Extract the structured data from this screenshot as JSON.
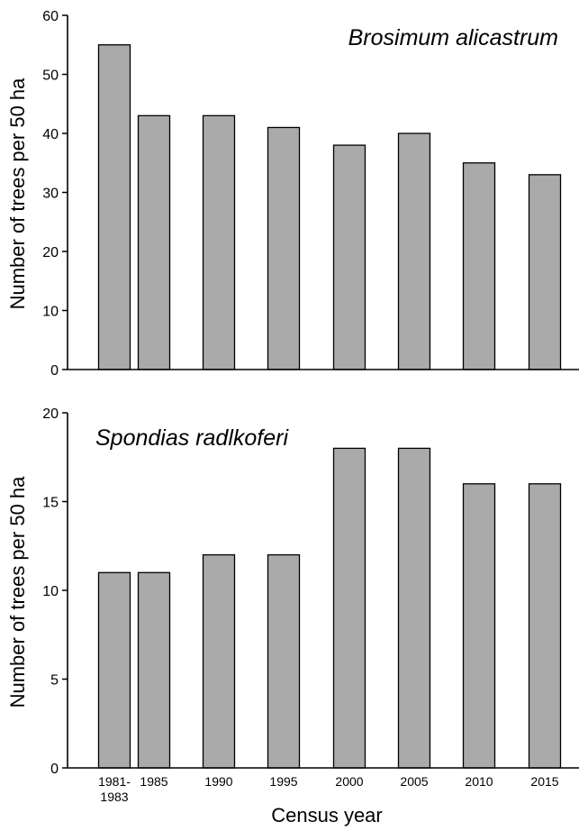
{
  "chart_data": [
    {
      "type": "bar",
      "title": "Brosimum alicastrum",
      "ylabel": "Number of trees per 50 ha",
      "xlabel": "",
      "ylim": [
        0,
        60
      ],
      "yticks": [
        0,
        10,
        20,
        30,
        40,
        50,
        60
      ],
      "categories": [
        "1981",
        "1985",
        "1990",
        "1995",
        "2000",
        "2005",
        "2010",
        "2015"
      ],
      "values": [
        55,
        43,
        43,
        41,
        38,
        40,
        35,
        33
      ],
      "bar_color": "#aaaaaa",
      "grid": false
    },
    {
      "type": "bar",
      "title": "Spondias radlkoferi",
      "ylabel": "Number of trees per 50 ha",
      "xlabel": "Census year",
      "ylim": [
        0,
        20
      ],
      "yticks": [
        0,
        5,
        10,
        15,
        20
      ],
      "categories": [
        "1981-1983",
        "1985",
        "1990",
        "1995",
        "2000",
        "2005",
        "2010",
        "2015"
      ],
      "category_labels": [
        [
          "1981-",
          "1983"
        ],
        [
          "1985"
        ],
        [
          "1990"
        ],
        [
          "1995"
        ],
        [
          "2000"
        ],
        [
          "2005"
        ],
        [
          "2010"
        ],
        [
          "2015"
        ]
      ],
      "values": [
        11,
        11,
        12,
        12,
        18,
        18,
        16,
        16
      ],
      "bar_color": "#aaaaaa",
      "grid": false
    }
  ]
}
